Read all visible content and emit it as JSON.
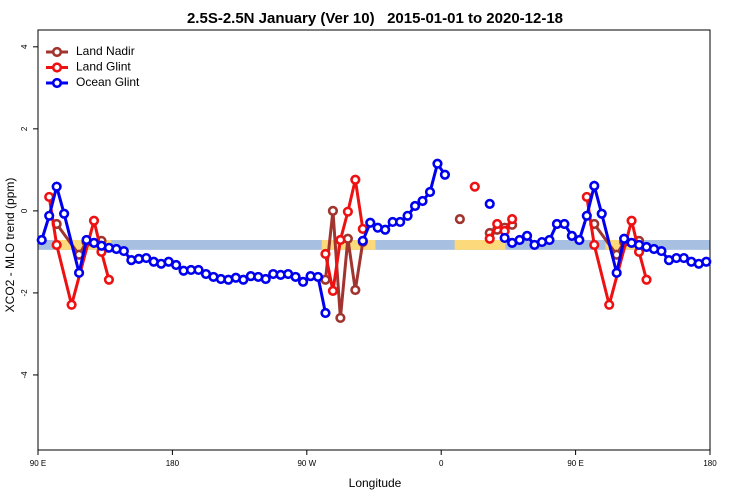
{
  "chart_data": {
    "type": "line",
    "title": "2.5S-2.5N January (Ver 10)   2015-01-01 to 2020-12-18",
    "xlabel": "Longitude",
    "ylabel": "XCO2 - MLO trend (ppm)",
    "xlim": [
      90,
      540
    ],
    "ylim": [
      -5.83,
      4.41
    ],
    "xticks": [
      {
        "value": 90,
        "label": "90 E"
      },
      {
        "value": 180,
        "label": "180"
      },
      {
        "value": 270,
        "label": "90 W"
      },
      {
        "value": 360,
        "label": "0"
      },
      {
        "value": 450,
        "label": "90 E"
      },
      {
        "value": 540,
        "label": "180"
      }
    ],
    "yticks": [
      -4,
      -2,
      0,
      2,
      4
    ],
    "legend": "top-left",
    "band": {
      "color": "#a7bfe0",
      "ylim": [
        -0.95,
        -0.71
      ]
    },
    "highlights": {
      "color": "#fcd97a",
      "ranges": [
        [
          101,
          139
        ],
        [
          280,
          316
        ],
        [
          369,
          403
        ],
        [
          470,
          493
        ]
      ]
    },
    "series": [
      {
        "name": "Land Nadir",
        "color": "#a0342f",
        "x": [
          102.5,
          117.5,
          122.5,
          132.5,
          137.5,
          282.5,
          287.5,
          292.5,
          297.5,
          302.5,
          307.5,
          312.5,
          372.5,
          377.5,
          392.5,
          397.5,
          402.5,
          407.5,
          412.5,
          462.5,
          477.5,
          482.5,
          492.5
        ],
        "values": [
          -0.32,
          -1.07,
          -0.76,
          -0.73,
          null,
          -1.68,
          0.0,
          -2.61,
          -0.68,
          -1.93,
          -0.76,
          null,
          -0.2,
          null,
          -0.54,
          -0.46,
          -0.41,
          -0.34,
          null,
          -0.32,
          -1.07,
          -0.76,
          -0.73
        ]
      },
      {
        "name": "Land Glint",
        "color": "#ee1111",
        "x": [
          97.5,
          102.5,
          112.5,
          127.5,
          132.5,
          137.5,
          142.5,
          282.5,
          287.5,
          292.5,
          297.5,
          302.5,
          307.5,
          312.5,
          382.5,
          387.5,
          392.5,
          397.5,
          402.5,
          407.5,
          412.5,
          457.5,
          462.5,
          472.5,
          487.5,
          492.5,
          497.5
        ],
        "values": [
          0.34,
          -0.83,
          -2.29,
          -0.24,
          -1.0,
          -1.68,
          null,
          -1.05,
          -1.95,
          -0.71,
          -0.02,
          0.76,
          -0.44,
          null,
          0.59,
          null,
          -0.68,
          -0.32,
          -0.49,
          -0.2,
          null,
          0.34,
          -0.83,
          -2.29,
          -0.24,
          -1.0,
          -1.68
        ]
      },
      {
        "name": "Ocean Glint",
        "color": "#0000ee",
        "x": [
          92.5,
          97.5,
          102.5,
          107.5,
          117.5,
          122.5,
          127.5,
          132.5,
          137.5,
          142.5,
          147.5,
          152.5,
          157.5,
          162.5,
          167.5,
          172.5,
          177.5,
          182.5,
          187.5,
          192.5,
          197.5,
          202.5,
          207.5,
          212.5,
          217.5,
          222.5,
          227.5,
          232.5,
          237.5,
          242.5,
          247.5,
          252.5,
          257.5,
          262.5,
          267.5,
          272.5,
          277.5,
          282.5,
          287.5,
          307.5,
          312.5,
          317.5,
          322.5,
          327.5,
          332.5,
          337.5,
          342.5,
          347.5,
          352.5,
          357.5,
          362.5,
          367.5,
          392.5,
          397.5,
          402.5,
          407.5,
          412.5,
          417.5,
          422.5,
          427.5,
          432.5,
          437.5,
          442.5,
          447.5,
          452.5,
          457.5,
          462.5,
          467.5,
          477.5,
          482.5,
          487.5,
          492.5,
          497.5,
          502.5,
          507.5,
          512.5,
          517.5,
          522.5,
          527.5,
          532.5,
          537.5
        ],
        "values": [
          -0.71,
          -0.12,
          0.59,
          -0.07,
          -1.51,
          -0.71,
          -0.78,
          -0.85,
          -0.9,
          -0.93,
          -0.98,
          -1.2,
          -1.17,
          -1.15,
          -1.24,
          -1.29,
          -1.24,
          -1.32,
          -1.46,
          -1.44,
          -1.44,
          -1.54,
          -1.61,
          -1.66,
          -1.68,
          -1.63,
          -1.68,
          -1.59,
          -1.61,
          -1.66,
          -1.54,
          -1.56,
          -1.54,
          -1.61,
          -1.73,
          -1.59,
          -1.61,
          -2.49,
          null,
          -0.73,
          -0.29,
          -0.41,
          -0.46,
          -0.27,
          -0.27,
          -0.12,
          0.12,
          0.24,
          0.46,
          1.15,
          0.88,
          null,
          0.17,
          null,
          -0.66,
          -0.78,
          -0.71,
          -0.61,
          -0.83,
          -0.76,
          -0.71,
          -0.32,
          -0.32,
          -0.61,
          -0.71,
          -0.12,
          0.61,
          -0.07,
          -1.51,
          -0.68,
          -0.78,
          -0.83,
          -0.88,
          -0.93,
          -0.98,
          -1.2,
          -1.15,
          -1.15,
          -1.24,
          -1.29,
          -1.24
        ]
      }
    ]
  }
}
